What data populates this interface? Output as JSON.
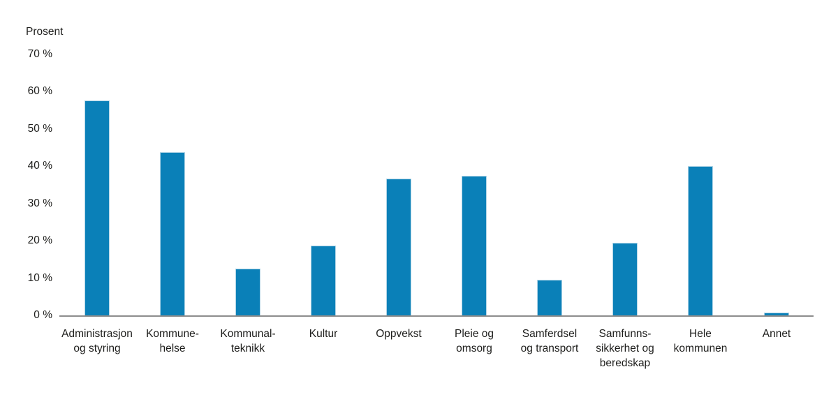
{
  "chart_data": {
    "type": "bar",
    "title": "",
    "ylabel": "Prosent",
    "xlabel": "",
    "categories": [
      "Administrasjon og styring",
      "Kommunehelse",
      "Kommunalteknikk",
      "Kultur",
      "Oppvekst",
      "Pleie og omsorg",
      "Samferdsel og transport",
      "Samfunnssikkerhet og beredskap",
      "Hele kommunen",
      "Annet"
    ],
    "category_label_lines": [
      [
        "Administrasjon",
        "og styring"
      ],
      [
        "Kommune-",
        "helse"
      ],
      [
        "Kommunal-",
        "teknikk"
      ],
      [
        "Kultur"
      ],
      [
        "Oppvekst"
      ],
      [
        "Pleie og",
        "omsorg"
      ],
      [
        "Samferdsel",
        "og transport"
      ],
      [
        "Samfunns-",
        "sikkerhet og",
        "beredskap"
      ],
      [
        "Hele",
        "kommunen"
      ],
      [
        "Annet"
      ]
    ],
    "values": [
      57.7,
      43.8,
      12.5,
      18.7,
      36.7,
      37.5,
      9.5,
      19.5,
      40.0,
      0.7
    ],
    "ylim": [
      0,
      70
    ],
    "ytick_step": 10,
    "yticks": [
      "0 %",
      "10 %",
      "20 %",
      "30 %",
      "40 %",
      "50 %",
      "60 %",
      "70 %"
    ],
    "grid": false,
    "legend": null,
    "bar_color": "#0a80b8",
    "bar_border_color": "#b0d4e6",
    "axis_line_color": "#8c8c8c",
    "text_color": "#1d1d1b",
    "background_color": "#ffffff"
  }
}
